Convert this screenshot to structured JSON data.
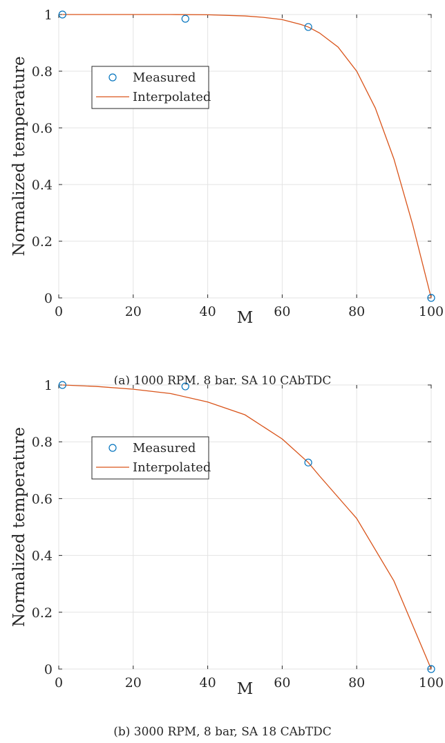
{
  "chart_data": [
    {
      "type": "line",
      "caption": "(a) 1000 RPM, 8 bar, SA 10 CAbTDC",
      "xlabel": "M",
      "ylabel": "Normalized temperature",
      "xlim": [
        0,
        100
      ],
      "ylim": [
        0,
        1
      ],
      "xticks": [
        0,
        20,
        40,
        60,
        80,
        100
      ],
      "yticks": [
        0,
        0.2,
        0.4,
        0.6,
        0.8,
        1
      ],
      "xtick_labels": [
        "0",
        "20",
        "40",
        "60",
        "80",
        "100"
      ],
      "ytick_labels": [
        "0",
        "0.2",
        "0.4",
        "0.6",
        "0.8",
        "1"
      ],
      "grid": true,
      "legend_position": "upper-left",
      "series": [
        {
          "name": "Measured",
          "kind": "marker",
          "color": "#0072BD",
          "x": [
            1,
            34,
            67,
            100
          ],
          "y": [
            1.0,
            0.985,
            0.956,
            0.0
          ]
        },
        {
          "name": "Interpolated",
          "kind": "line",
          "color": "#D95319",
          "x": [
            1,
            10,
            20,
            30,
            40,
            50,
            55,
            60,
            65,
            67,
            70,
            75,
            80,
            85,
            90,
            95,
            100
          ],
          "y": [
            1.0,
            1.0,
            1.0,
            1.0,
            0.999,
            0.995,
            0.99,
            0.982,
            0.965,
            0.956,
            0.935,
            0.885,
            0.8,
            0.67,
            0.49,
            0.26,
            0.0
          ]
        }
      ]
    },
    {
      "type": "line",
      "caption": "(b) 3000 RPM, 8 bar, SA 18 CAbTDC",
      "xlabel": "M",
      "ylabel": "Normalized temperature",
      "xlim": [
        0,
        100
      ],
      "ylim": [
        0,
        1
      ],
      "xticks": [
        0,
        20,
        40,
        60,
        80,
        100
      ],
      "yticks": [
        0,
        0.2,
        0.4,
        0.6,
        0.8,
        1
      ],
      "xtick_labels": [
        "0",
        "20",
        "40",
        "60",
        "80",
        "100"
      ],
      "ytick_labels": [
        "0",
        "0.2",
        "0.4",
        "0.6",
        "0.8",
        "1"
      ],
      "grid": true,
      "legend_position": "upper-left",
      "series": [
        {
          "name": "Measured",
          "kind": "marker",
          "color": "#0072BD",
          "x": [
            1,
            34,
            67,
            100
          ],
          "y": [
            1.0,
            0.995,
            0.727,
            0.0
          ]
        },
        {
          "name": "Interpolated",
          "kind": "line",
          "color": "#D95319",
          "x": [
            1,
            10,
            20,
            30,
            40,
            50,
            60,
            67,
            70,
            80,
            90,
            100
          ],
          "y": [
            1.0,
            0.995,
            0.985,
            0.97,
            0.94,
            0.895,
            0.81,
            0.727,
            0.68,
            0.53,
            0.31,
            0.0
          ]
        }
      ]
    }
  ]
}
